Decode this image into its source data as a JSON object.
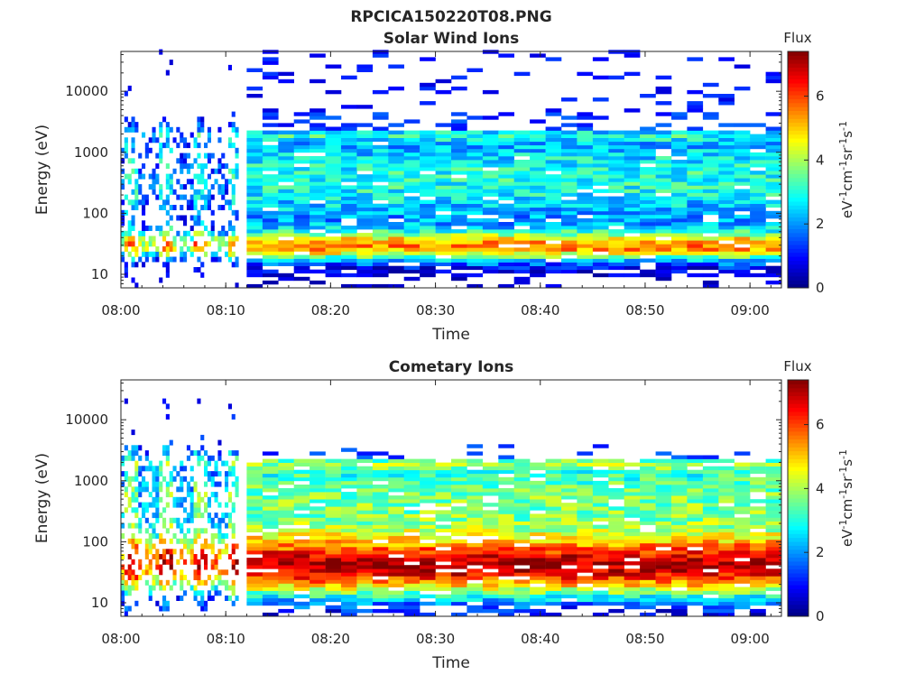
{
  "figure": {
    "title": "RPCICA150220T08.PNG"
  },
  "chart_data": [
    {
      "type": "heatmap",
      "title": "Solar Wind Ions",
      "xlabel": "Time",
      "ylabel": "Energy (eV)",
      "x_start": "08:00",
      "x_end": "09:03",
      "y_scale": "log",
      "ylim": [
        6,
        45000
      ],
      "xticks": [
        "08:00",
        "08:10",
        "08:20",
        "08:30",
        "08:40",
        "08:50",
        "09:00"
      ],
      "yticks": [
        10,
        100,
        1000,
        10000
      ],
      "ytick_labels": [
        "10",
        "100",
        "1000",
        "10000"
      ],
      "colorbar": {
        "label": "Flux",
        "unit_base": "eV",
        "unit_parts": [
          "cm",
          "sr",
          "s"
        ],
        "range": [
          0,
          7.4
        ],
        "ticks": [
          0,
          2,
          4,
          6
        ]
      },
      "colormap": [
        "#00007f",
        "#0000ff",
        "#007fff",
        "#00ffff",
        "#7fff7f",
        "#ffff00",
        "#ff7f00",
        "#ff0000",
        "#7f0000"
      ],
      "features": {
        "fine_sampling_until": "08:11",
        "coarse_steps_after": "08:12",
        "high_flux_band_ev": [
          18,
          40
        ],
        "mid_band_ev": [
          60,
          2000
        ]
      }
    },
    {
      "type": "heatmap",
      "title": "Cometary Ions",
      "xlabel": "Time",
      "ylabel": "Energy (eV)",
      "x_start": "08:00",
      "x_end": "09:03",
      "y_scale": "log",
      "ylim": [
        6,
        45000
      ],
      "xticks": [
        "08:00",
        "08:10",
        "08:20",
        "08:30",
        "08:40",
        "08:50",
        "09:00"
      ],
      "yticks": [
        10,
        100,
        1000,
        10000
      ],
      "ytick_labels": [
        "10",
        "100",
        "1000",
        "10000"
      ],
      "colorbar": {
        "label": "Flux",
        "unit_base": "eV",
        "unit_parts": [
          "cm",
          "sr",
          "s"
        ],
        "range": [
          0,
          7.4
        ],
        "ticks": [
          0,
          2,
          4,
          6
        ]
      },
      "colormap": [
        "#00007f",
        "#0000ff",
        "#007fff",
        "#00ffff",
        "#7fff7f",
        "#ffff00",
        "#ff7f00",
        "#ff0000",
        "#7f0000"
      ],
      "features": {
        "fine_sampling_until": "08:11",
        "coarse_steps_after": "08:12",
        "high_flux_band_ev": [
          15,
          80
        ],
        "mid_band_ev": [
          80,
          3000
        ]
      }
    }
  ]
}
